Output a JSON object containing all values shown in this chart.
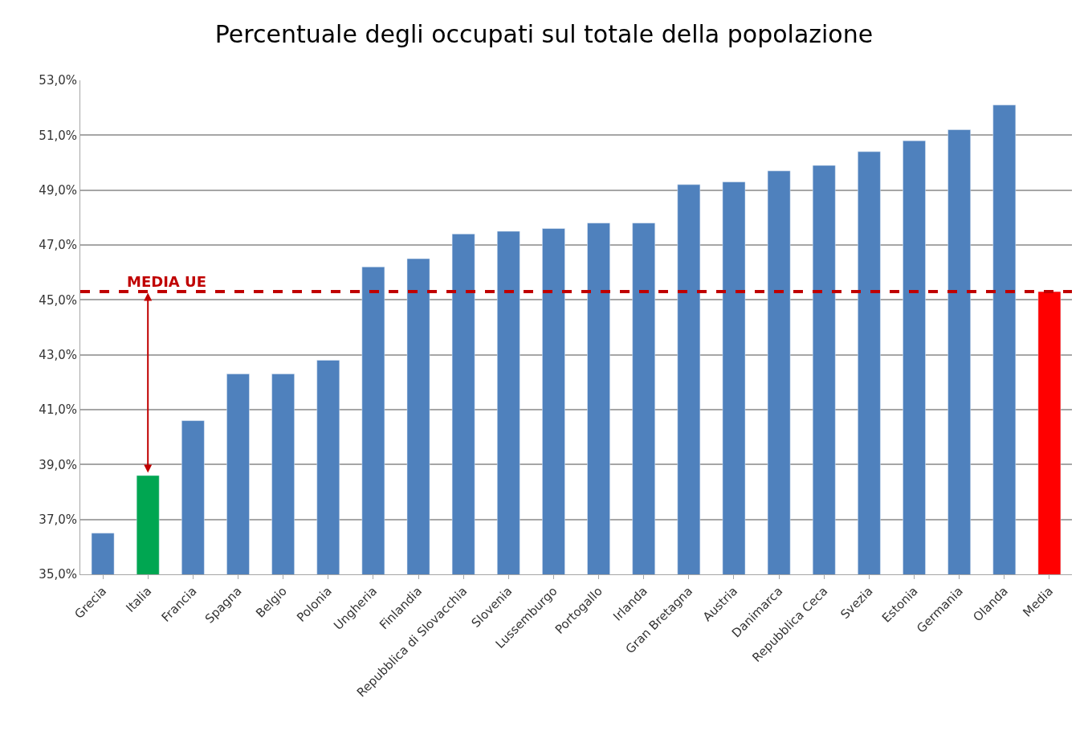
{
  "chart_data": {
    "type": "bar",
    "title": "Percentuale degli occupati sul totale della popolazione",
    "categories": [
      "Grecia",
      "Italia",
      "Francia",
      "Spagna",
      "Belgio",
      "Polonia",
      "Ungheria",
      "Finlandia",
      "Repubblica di Slovacchia",
      "Slovenia",
      "Lussemburgo",
      "Portogallo",
      "Irlanda",
      "Gran Bretagna",
      "Austria",
      "Danimarca",
      "Repubblica Ceca",
      "Svezia",
      "Estonia",
      "Germania",
      "Olanda",
      "Media"
    ],
    "values": [
      36.5,
      38.6,
      40.6,
      42.3,
      42.3,
      42.8,
      46.2,
      46.5,
      47.4,
      47.5,
      47.6,
      47.8,
      47.8,
      49.2,
      49.3,
      49.7,
      49.9,
      50.4,
      50.8,
      51.2,
      52.1,
      45.3
    ],
    "colors": [
      "#4f81bd",
      "#00a651",
      "#4f81bd",
      "#4f81bd",
      "#4f81bd",
      "#4f81bd",
      "#4f81bd",
      "#4f81bd",
      "#4f81bd",
      "#4f81bd",
      "#4f81bd",
      "#4f81bd",
      "#4f81bd",
      "#4f81bd",
      "#4f81bd",
      "#4f81bd",
      "#4f81bd",
      "#4f81bd",
      "#4f81bd",
      "#4f81bd",
      "#4f81bd",
      "#ff0000"
    ],
    "ylim": [
      35,
      53
    ],
    "yticks": [
      {
        "value": 35,
        "label": "35,0%"
      },
      {
        "value": 37,
        "label": "37,0%"
      },
      {
        "value": 39,
        "label": "39,0%"
      },
      {
        "value": 41,
        "label": "41,0%"
      },
      {
        "value": 43,
        "label": "43,0%"
      },
      {
        "value": 45,
        "label": "45,0%"
      },
      {
        "value": 47,
        "label": "47,0%"
      },
      {
        "value": 49,
        "label": "49,0%"
      },
      {
        "value": 51,
        "label": "51,0%"
      },
      {
        "value": 53,
        "label": "53,0%"
      }
    ],
    "grid": "y",
    "ref_lines": [
      {
        "axis": "y",
        "value": 45.3,
        "label": "MEDIA UE",
        "color": "#c00000",
        "line_style": "dashed"
      }
    ]
  }
}
